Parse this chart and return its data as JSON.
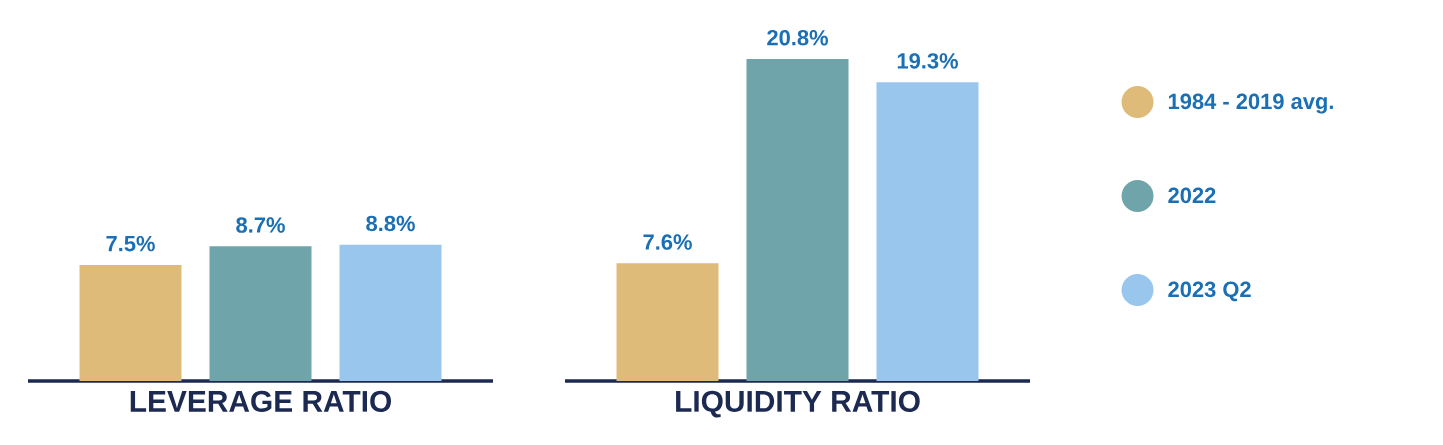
{
  "chart_data": [
    {
      "type": "bar",
      "xlabel": "LEVERAGE RATIO",
      "categories": [
        null
      ],
      "series": [
        {
          "color": "#dfbb7a",
          "values": [
            7.5
          ],
          "value_labels": [
            "7.5%"
          ]
        },
        {
          "color": "#6fa5aa",
          "values": [
            8.7
          ],
          "value_labels": [
            "8.7%"
          ]
        },
        {
          "color": "#98c6ec",
          "values": [
            8.8
          ],
          "value_labels": [
            "8.8%"
          ]
        }
      ]
    },
    {
      "type": "bar",
      "xlabel": "LIQUIDITY RATIO",
      "categories": [
        null
      ],
      "legend": "right",
      "series": [
        {
          "name": "1984 - 2019 avg.",
          "color": "#dfbb7a",
          "values": [
            7.6
          ],
          "value_labels": [
            "7.6%"
          ]
        },
        {
          "name": "2022",
          "color": "#6fa5aa",
          "values": [
            20.8
          ],
          "value_labels": [
            "20.8%"
          ]
        },
        {
          "name": "2023 Q2",
          "color": "#98c6ec",
          "values": [
            19.3
          ],
          "value_labels": [
            "19.3%"
          ]
        }
      ]
    }
  ]
}
